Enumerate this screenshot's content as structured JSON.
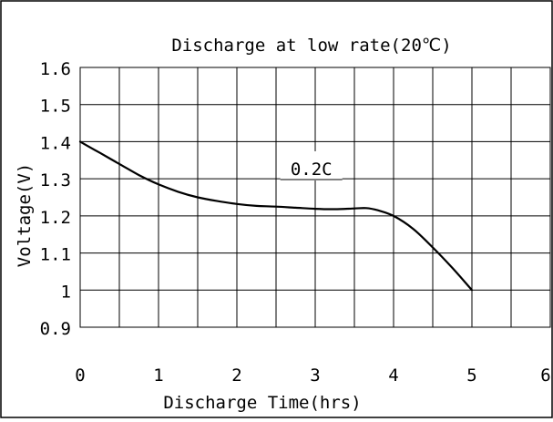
{
  "chart_data": {
    "type": "line",
    "title": "Discharge at low rate(20℃)",
    "xlabel": "Discharge Time(hrs)",
    "ylabel": "Voltage(V)",
    "xlim": [
      0,
      6
    ],
    "ylim": [
      0.9,
      1.6
    ],
    "x_ticks": [
      "0",
      "1",
      "2",
      "3",
      "4",
      "5",
      "6"
    ],
    "y_ticks": [
      "1.6",
      "1.5",
      "1.4",
      "1.3",
      "1.2",
      "1.1",
      "1",
      "0.9"
    ],
    "x_tick_values": [
      0,
      1,
      2,
      3,
      4,
      5,
      6
    ],
    "y_tick_values": [
      1.6,
      1.5,
      1.4,
      1.3,
      1.2,
      1.1,
      1.0,
      0.9
    ],
    "grid": true,
    "series": [
      {
        "name": "0.2C",
        "x": [
          0,
          0.25,
          0.5,
          0.75,
          1.0,
          1.25,
          1.5,
          1.75,
          2.0,
          2.25,
          2.5,
          2.75,
          3.0,
          3.25,
          3.5,
          3.65,
          3.8,
          4.0,
          4.25,
          4.5,
          4.75,
          5.0
        ],
        "y": [
          1.4,
          1.37,
          1.34,
          1.31,
          1.285,
          1.265,
          1.25,
          1.24,
          1.232,
          1.227,
          1.225,
          1.222,
          1.219,
          1.218,
          1.22,
          1.221,
          1.215,
          1.2,
          1.165,
          1.115,
          1.06,
          1.0
        ]
      }
    ],
    "annotations": [
      {
        "text": "0.2C",
        "series": "0.2C"
      }
    ]
  }
}
